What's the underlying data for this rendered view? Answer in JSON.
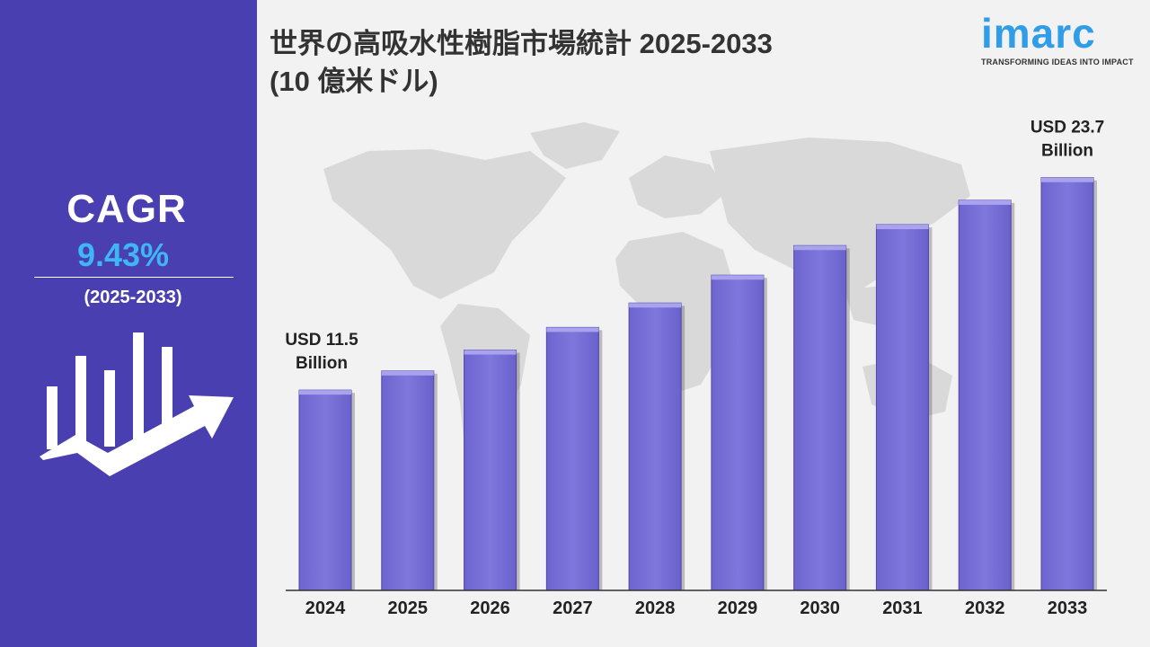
{
  "sidebar": {
    "cagr_label": "CAGR",
    "cagr_value": "9.43%",
    "cagr_period": "(2025-2033)",
    "icon": "growth-chart-arrow-icon"
  },
  "header": {
    "title_line1": "世界の高吸水性樹脂市場統計 2025-2033",
    "title_line2": "(10 億米ドル)"
  },
  "logo": {
    "word": "imarc",
    "tagline": "TRANSFORMING IDEAS INTO IMPACT"
  },
  "colors": {
    "sidebar_bg": "#4a3fb0",
    "bar_fill": "#7b73d8",
    "bar_top": "#a9a3ee",
    "cagr_value": "#3fb6f5",
    "logo": "#2f9de8",
    "map": "#d9d9d9"
  },
  "chart_data": {
    "type": "bar",
    "title": "世界の高吸水性樹脂市場統計 2025-2033",
    "subtitle": "(10 億米ドル)",
    "categories": [
      "2024",
      "2025",
      "2026",
      "2027",
      "2028",
      "2029",
      "2030",
      "2031",
      "2032",
      "2033"
    ],
    "values": [
      11.5,
      12.6,
      13.8,
      15.1,
      16.5,
      18.1,
      19.8,
      21.0,
      22.4,
      23.7
    ],
    "annotations": [
      {
        "category": "2024",
        "line1": "USD 11.5",
        "line2": "Billion"
      },
      {
        "category": "2033",
        "line1": "USD 23.7",
        "line2": "Billion"
      }
    ],
    "xlabel": "",
    "ylabel": "",
    "ylim": [
      0,
      29
    ],
    "grid": false,
    "legend": "none"
  }
}
